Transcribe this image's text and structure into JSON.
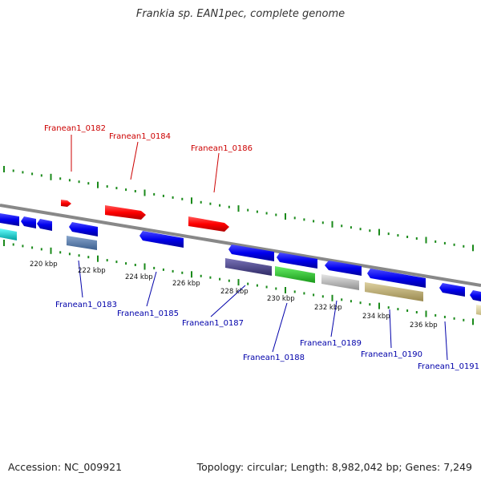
{
  "title": "Frankia sp. EAN1pec, complete genome",
  "footer": {
    "accession": "Accession: NC_009921",
    "summary": "Topology: circular; Length: 8,982,042 bp; Genes: 7,249"
  },
  "colors": {
    "axis": "#888888",
    "tick": "#1a8a1a",
    "forward_gene": "#ff0000",
    "reverse_gene": "#0000ee",
    "label_red": "#cc0000",
    "label_blue": "#0000aa"
  },
  "kbp_labels": [
    "220 kbp",
    "222 kbp",
    "224 kbp",
    "226 kbp",
    "228 kbp",
    "230 kbp",
    "232 kbp",
    "234 kbp",
    "236 kbp"
  ],
  "gene_labels_top": [
    "Franean1_0182",
    "Franean1_0184",
    "Franean1_0186"
  ],
  "gene_labels_bottom": [
    "Franean1_0183",
    "Franean1_0185",
    "Franean1_0187",
    "Franean1_0188",
    "Franean1_0189",
    "Franean1_0190",
    "Franean1_0191"
  ],
  "features": {
    "forward": [
      {
        "strand": "+",
        "color": "#ff0000"
      },
      {
        "strand": "+",
        "color": "#ff0000"
      },
      {
        "strand": "+",
        "color": "#ff0000"
      }
    ],
    "reverse": [
      {
        "strand": "-",
        "color": "#0000ee"
      },
      {
        "strand": "-",
        "color": "#0000ee"
      },
      {
        "strand": "-",
        "color": "#0000ee"
      },
      {
        "strand": "-",
        "color": "#0000ee"
      },
      {
        "strand": "-",
        "color": "#0000ee"
      },
      {
        "strand": "-",
        "color": "#0000ee"
      },
      {
        "strand": "-",
        "color": "#0000ee"
      },
      {
        "strand": "-",
        "color": "#0000ee"
      },
      {
        "strand": "-",
        "color": "#0000ee"
      }
    ],
    "other_tracks": [
      {
        "color": "#00cccc"
      },
      {
        "color": "#5577aa"
      },
      {
        "color": "#4a4488"
      },
      {
        "color": "#33cc33"
      },
      {
        "color": "#bbbbbb"
      },
      {
        "color": "#c8b878"
      },
      {
        "color": "#e0d8a8"
      }
    ]
  }
}
